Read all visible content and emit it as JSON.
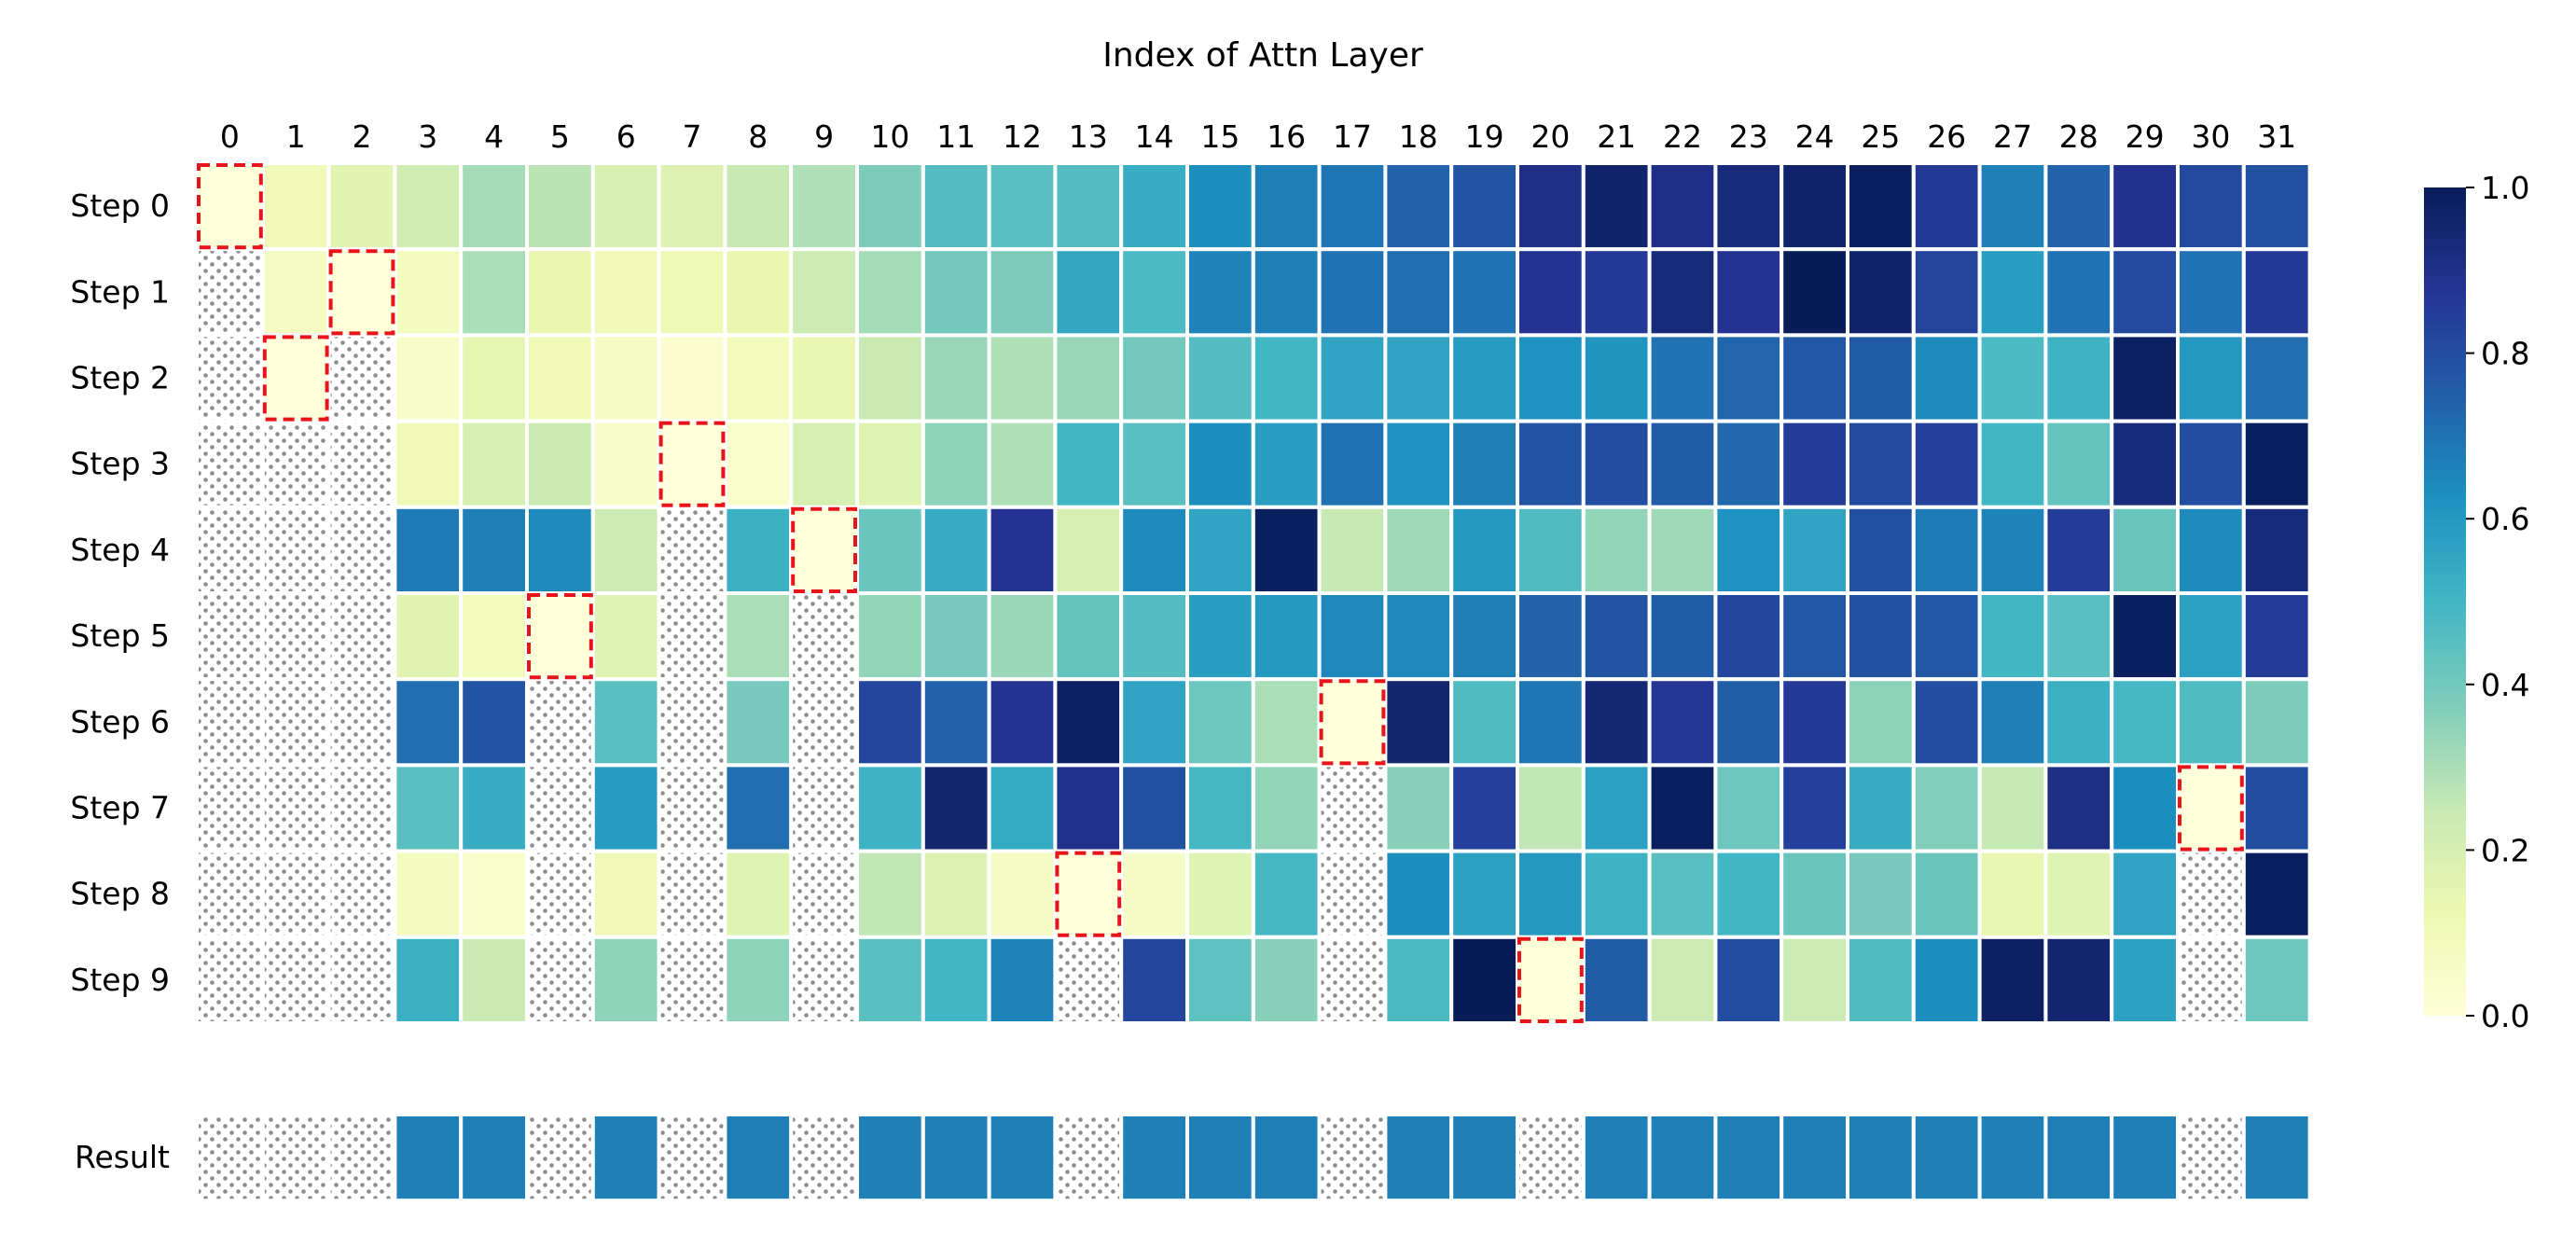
{
  "chart_data": {
    "type": "heatmap",
    "title": "Index of Attn Layer",
    "columns": [
      "0",
      "1",
      "2",
      "3",
      "4",
      "5",
      "6",
      "7",
      "8",
      "9",
      "10",
      "11",
      "12",
      "13",
      "14",
      "15",
      "16",
      "17",
      "18",
      "19",
      "20",
      "21",
      "22",
      "23",
      "24",
      "25",
      "26",
      "27",
      "28",
      "29",
      "30",
      "31"
    ],
    "rows": [
      "Step 0",
      "Step 1",
      "Step 2",
      "Step 3",
      "Step 4",
      "Step 5",
      "Step 6",
      "Step 7",
      "Step 8",
      "Step 9"
    ],
    "values": [
      [
        0.0,
        0.1,
        0.16,
        0.22,
        0.31,
        0.27,
        0.19,
        0.18,
        0.25,
        0.29,
        0.38,
        0.46,
        0.45,
        0.46,
        0.53,
        0.63,
        0.67,
        0.69,
        0.74,
        0.78,
        0.9,
        0.96,
        0.9,
        0.93,
        0.96,
        0.99,
        0.86,
        0.67,
        0.74,
        0.89,
        0.81,
        0.79
      ],
      [
        null,
        0.07,
        0.0,
        0.08,
        0.3,
        0.13,
        0.1,
        0.11,
        0.13,
        0.23,
        0.31,
        0.4,
        0.38,
        0.55,
        0.48,
        0.66,
        0.67,
        0.7,
        0.71,
        0.7,
        0.88,
        0.86,
        0.93,
        0.88,
        1.0,
        0.96,
        0.83,
        0.58,
        0.7,
        0.81,
        0.7,
        0.86
      ],
      [
        null,
        0.0,
        null,
        0.05,
        0.15,
        0.1,
        0.07,
        0.03,
        0.09,
        0.14,
        0.24,
        0.33,
        0.29,
        0.33,
        0.4,
        0.46,
        0.5,
        0.56,
        0.56,
        0.59,
        0.62,
        0.61,
        0.7,
        0.73,
        0.77,
        0.76,
        0.64,
        0.48,
        0.51,
        0.98,
        0.6,
        0.71
      ],
      [
        null,
        null,
        null,
        0.1,
        0.2,
        0.24,
        0.05,
        0.0,
        0.04,
        0.2,
        0.17,
        0.35,
        0.29,
        0.5,
        0.45,
        0.63,
        0.58,
        0.7,
        0.62,
        0.67,
        0.78,
        0.8,
        0.76,
        0.72,
        0.85,
        0.81,
        0.84,
        0.5,
        0.43,
        0.93,
        0.8,
        0.99
      ],
      [
        null,
        null,
        null,
        0.68,
        0.67,
        0.64,
        0.23,
        null,
        0.52,
        0.0,
        0.42,
        0.53,
        0.88,
        0.2,
        0.64,
        0.56,
        0.99,
        0.25,
        0.32,
        0.6,
        0.47,
        0.34,
        0.32,
        0.62,
        0.56,
        0.79,
        0.68,
        0.66,
        0.85,
        0.42,
        0.64,
        0.93
      ],
      [
        null,
        null,
        null,
        0.16,
        0.09,
        0.0,
        0.17,
        null,
        0.3,
        null,
        0.34,
        0.39,
        0.33,
        0.43,
        0.46,
        0.58,
        0.6,
        0.65,
        0.65,
        0.67,
        0.74,
        0.78,
        0.76,
        0.82,
        0.77,
        0.79,
        0.77,
        0.5,
        0.45,
        0.99,
        0.57,
        0.85
      ],
      [
        null,
        null,
        null,
        0.71,
        0.78,
        null,
        0.45,
        null,
        0.39,
        null,
        0.82,
        0.74,
        0.88,
        0.98,
        0.56,
        0.41,
        0.3,
        0.0,
        0.95,
        0.47,
        0.69,
        0.94,
        0.87,
        0.75,
        0.86,
        0.35,
        0.8,
        0.67,
        0.52,
        0.49,
        0.47,
        0.38
      ],
      [
        null,
        null,
        null,
        0.45,
        0.53,
        null,
        0.59,
        null,
        0.71,
        null,
        0.51,
        0.95,
        0.54,
        0.89,
        0.79,
        0.49,
        0.34,
        null,
        0.36,
        0.84,
        0.26,
        0.57,
        0.99,
        0.41,
        0.84,
        0.53,
        0.37,
        0.25,
        0.91,
        0.63,
        0.0,
        0.8
      ],
      [
        null,
        null,
        null,
        0.08,
        0.04,
        null,
        0.1,
        null,
        0.17,
        null,
        0.26,
        0.18,
        0.07,
        0.0,
        0.06,
        0.17,
        0.49,
        null,
        0.63,
        0.57,
        0.6,
        0.51,
        0.45,
        0.5,
        0.42,
        0.39,
        0.42,
        0.14,
        0.17,
        0.56,
        null,
        0.99
      ],
      [
        null,
        null,
        null,
        0.52,
        0.24,
        null,
        0.35,
        null,
        0.35,
        null,
        0.45,
        0.5,
        0.66,
        null,
        0.82,
        0.44,
        0.36,
        null,
        0.48,
        1.0,
        0.0,
        0.76,
        0.23,
        0.8,
        0.23,
        0.47,
        0.63,
        0.98,
        0.95,
        0.57,
        null,
        0.41
      ]
    ],
    "result": {
      "label": "Result",
      "values": [
        null,
        null,
        null,
        0.67,
        0.67,
        null,
        0.67,
        null,
        0.67,
        null,
        0.67,
        0.67,
        0.67,
        null,
        0.67,
        0.67,
        0.67,
        null,
        0.67,
        0.67,
        null,
        0.67,
        0.67,
        0.67,
        0.67,
        0.67,
        0.67,
        0.67,
        0.67,
        0.67,
        null,
        0.67
      ]
    },
    "highlighted_cells": [
      [
        0,
        0
      ],
      [
        1,
        2
      ],
      [
        2,
        1
      ],
      [
        3,
        7
      ],
      [
        4,
        9
      ],
      [
        5,
        5
      ],
      [
        6,
        17
      ],
      [
        7,
        30
      ],
      [
        8,
        13
      ],
      [
        9,
        20
      ]
    ],
    "colorbar": {
      "colormap": "YlGnBu",
      "range": [
        0,
        1
      ],
      "ticks": [
        "0.0",
        "0.2",
        "0.4",
        "0.6",
        "0.8",
        "1.0"
      ]
    },
    "missing_style": "dotted",
    "highlight_color": "#e8141b",
    "grid_line_color": "#ffffff"
  }
}
